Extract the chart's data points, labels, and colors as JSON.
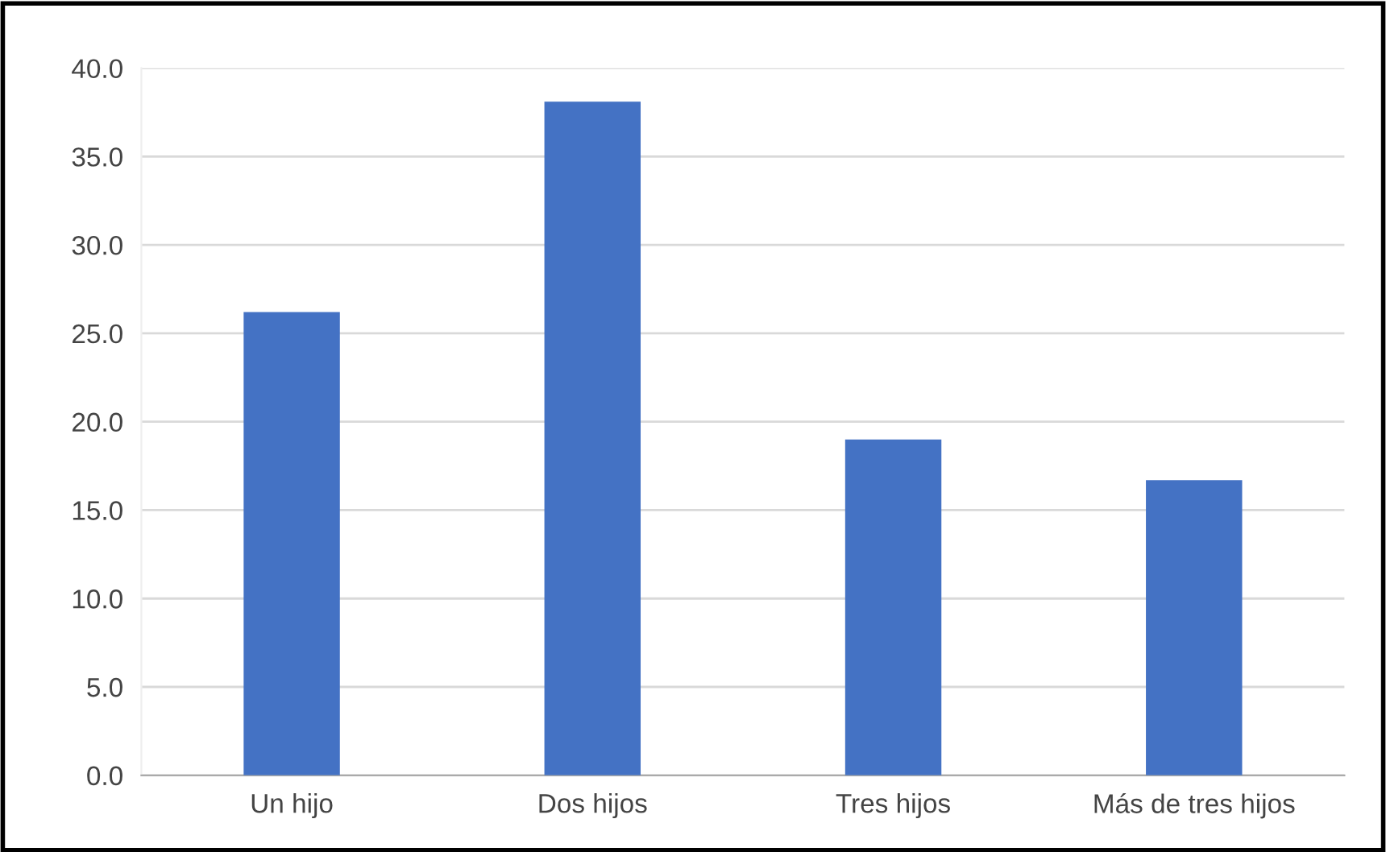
{
  "chart_data": {
    "type": "bar",
    "categories": [
      "Un hijo",
      "Dos hijos",
      "Tres hijos",
      "Más de tres hijos"
    ],
    "values": [
      26.2,
      38.1,
      19.0,
      16.7
    ],
    "color": "#4472c4",
    "ylim": [
      0,
      40
    ],
    "yticks": [
      {
        "value": 0,
        "label": "0.0"
      },
      {
        "value": 5,
        "label": "5.0"
      },
      {
        "value": 10,
        "label": "10.0"
      },
      {
        "value": 15,
        "label": "15.0"
      },
      {
        "value": 20,
        "label": "20.0"
      },
      {
        "value": 25,
        "label": "25.0"
      },
      {
        "value": 30,
        "label": "30.0"
      },
      {
        "value": 35,
        "label": "35.0"
      },
      {
        "value": 40,
        "label": "40.0"
      }
    ],
    "grid": "y"
  }
}
